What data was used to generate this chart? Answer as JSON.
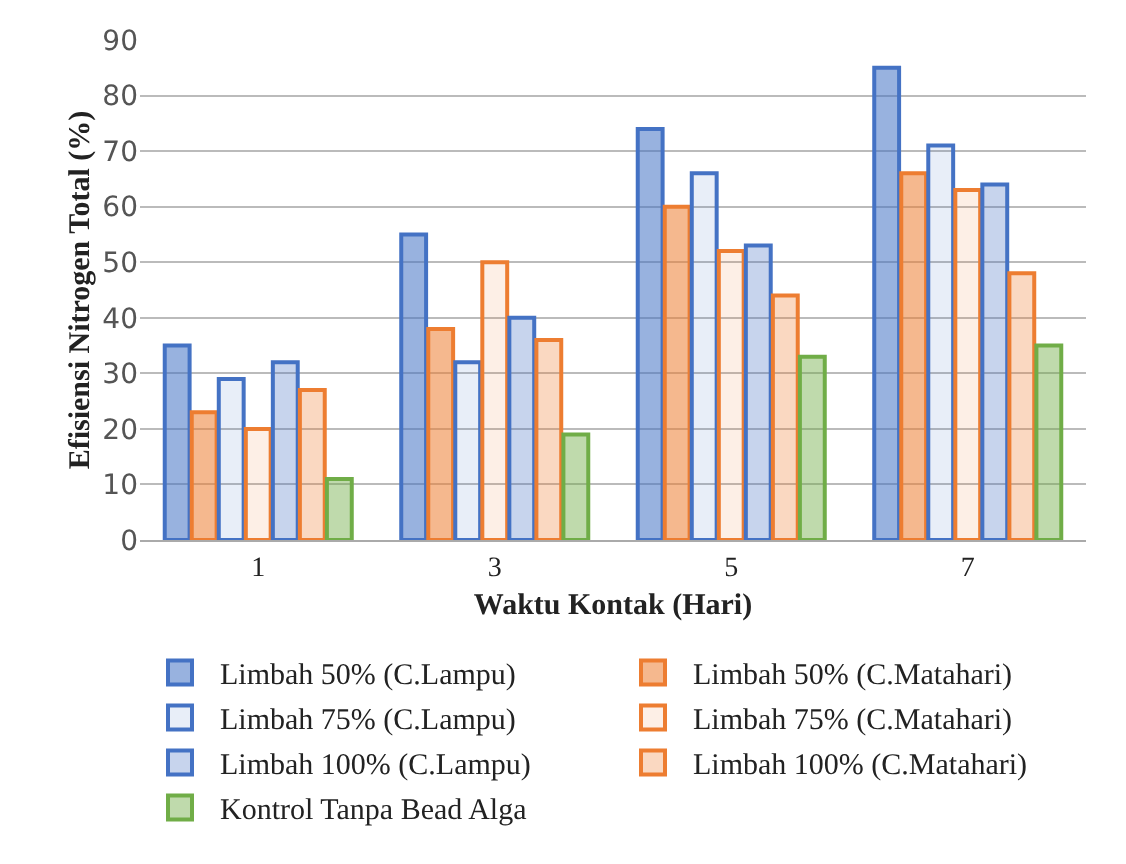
{
  "chart_data": {
    "type": "bar",
    "xlabel": "Waktu Kontak (Hari)",
    "ylabel": "Efisiensi Nitrogen Total (%)",
    "categories": [
      "1",
      "3",
      "5",
      "7"
    ],
    "ylim": [
      0,
      90
    ],
    "yticks": [
      0,
      10,
      20,
      30,
      40,
      50,
      60,
      70,
      80,
      90
    ],
    "grid": "y",
    "legend": "bottom",
    "series": [
      {
        "name": "Limbah 50% (C.Lampu)",
        "color": "#4472c4",
        "values": [
          35,
          55,
          74,
          85
        ]
      },
      {
        "name": "Limbah 50% (C.Matahari)",
        "color": "#ed7d31",
        "values": [
          23,
          38,
          60,
          66
        ]
      },
      {
        "name": "Limbah 75% (C.Lampu)",
        "color": "#4472c4",
        "values": [
          29,
          32,
          66,
          71
        ]
      },
      {
        "name": "Limbah 75% (C.Matahari)",
        "color": "#ed7d31",
        "values": [
          20,
          50,
          52,
          63
        ]
      },
      {
        "name": "Limbah 100% (C.Lampu)",
        "color": "#4472c4",
        "values": [
          32,
          40,
          53,
          64
        ]
      },
      {
        "name": "Limbah 100% (C.Matahari)",
        "color": "#ed7d31",
        "values": [
          27,
          36,
          44,
          48
        ]
      },
      {
        "name": "Kontrol Tanpa Bead Alga",
        "color": "#70ad47",
        "values": [
          11,
          19,
          33,
          35
        ]
      }
    ]
  }
}
